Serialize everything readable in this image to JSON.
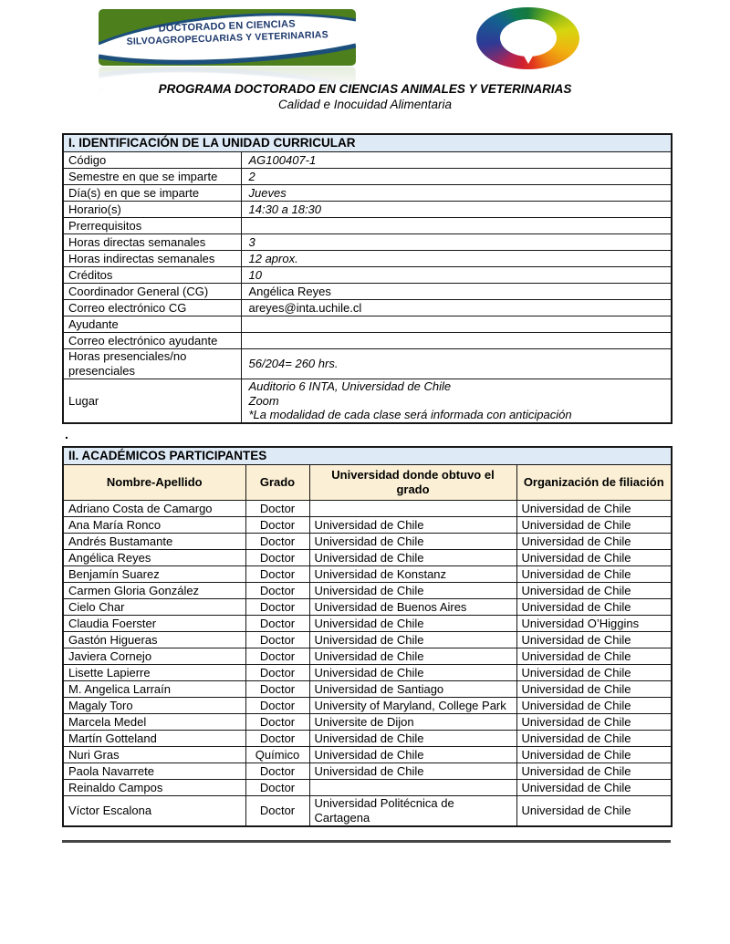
{
  "header": {
    "left_logo": {
      "line1": "DOCTORADO EN CIENCIAS",
      "line2": "SILVOAGROPECUARIAS Y VETERINARIAS"
    },
    "title": "PROGRAMA DOCTORADO EN CIENCIAS ANIMALES Y VETERINARIAS",
    "subtitle": "Calidad e Inocuidad Alimentaria"
  },
  "identification_table": {
    "section_title": "I. IDENTIFICACIÓN DE LA UNIDAD CURRICULAR",
    "rows": [
      {
        "label": "Código",
        "value": "AG100407-1",
        "italic": true
      },
      {
        "label": "Semestre en que se imparte",
        "value": "2",
        "italic": true
      },
      {
        "label": "Día(s) en que se imparte",
        "value": "Jueves",
        "italic": true
      },
      {
        "label": "Horario(s)",
        "value": "14:30 a 18:30",
        "italic": true
      },
      {
        "label": "Prerrequisitos",
        "value": "",
        "italic": false
      },
      {
        "label": "Horas directas semanales",
        "value": "3",
        "italic": true
      },
      {
        "label": "Horas indirectas semanales",
        "value": "12 aprox.",
        "italic": true
      },
      {
        "label": "Créditos",
        "value": "10",
        "italic": true
      },
      {
        "label": "Coordinador General (CG)",
        "value": "Angélica Reyes",
        "italic": false
      },
      {
        "label": "Correo electrónico CG",
        "value": "areyes@inta.uchile.cl",
        "italic": false
      },
      {
        "label": "Ayudante",
        "value": "",
        "italic": false
      },
      {
        "label": "Correo electrónico ayudante",
        "value": "",
        "italic": false
      },
      {
        "label": "Horas presenciales/no presenciales",
        "value": "56/204= 260 hrs.",
        "italic": true
      },
      {
        "label": "Lugar",
        "value": [
          "Auditorio 6 INTA, Universidad de Chile",
          "Zoom",
          "*La modalidad de cada clase será informada con anticipación"
        ],
        "italic": true
      }
    ]
  },
  "separator_dot": ".",
  "academics_table": {
    "section_title": "II. ACADÉMICOS PARTICIPANTES",
    "columns": [
      "Nombre-Apellido",
      "Grado",
      "Universidad donde obtuvo el grado",
      "Organización de filiación"
    ],
    "rows": [
      [
        "Adriano Costa de Camargo",
        "Doctor",
        "",
        "Universidad de Chile"
      ],
      [
        "Ana María Ronco",
        "Doctor",
        "Universidad de Chile",
        "Universidad de Chile"
      ],
      [
        "Andrés Bustamante",
        "Doctor",
        "Universidad de Chile",
        "Universidad de Chile"
      ],
      [
        "Angélica Reyes",
        "Doctor",
        "Universidad de Chile",
        "Universidad de Chile"
      ],
      [
        "Benjamín Suarez",
        "Doctor",
        "Universidad de Konstanz",
        "Universidad de Chile"
      ],
      [
        "Carmen Gloria González",
        "Doctor",
        "Universidad de Chile",
        "Universidad de Chile"
      ],
      [
        "Cielo Char",
        "Doctor",
        "Universidad de Buenos Aires",
        "Universidad de Chile"
      ],
      [
        "Claudia Foerster",
        "Doctor",
        "Universidad de Chile",
        "Universidad O’Higgins"
      ],
      [
        "Gastón Higueras",
        "Doctor",
        "Universidad de Chile",
        "Universidad de Chile"
      ],
      [
        "Javiera Cornejo",
        "Doctor",
        "Universidad de Chile",
        "Universidad de Chile"
      ],
      [
        "Lisette Lapierre",
        "Doctor",
        "Universidad de Chile",
        "Universidad de Chile"
      ],
      [
        "M. Angelica Larraín",
        "Doctor",
        "Universidad de Santiago",
        "Universidad de Chile"
      ],
      [
        "Magaly Toro",
        "Doctor",
        "University of Maryland, College Park",
        "Universidad de Chile"
      ],
      [
        "Marcela Medel",
        "Doctor",
        "Universite de Dijon",
        "Universidad de Chile"
      ],
      [
        "Martín Gotteland",
        "Doctor",
        "Universidad de Chile",
        "Universidad de Chile"
      ],
      [
        "Nuri Gras",
        "Químico",
        "Universidad de Chile",
        "Universidad de Chile"
      ],
      [
        "Paola Navarrete",
        "Doctor",
        "Universidad de Chile",
        "Universidad de Chile"
      ],
      [
        "Reinaldo Campos",
        "Doctor",
        "",
        "Universidad de Chile"
      ],
      [
        "Víctor Escalona",
        "Doctor",
        "Universidad Politécnica de Cartagena",
        "Universidad de Chile"
      ]
    ]
  },
  "colors": {
    "section_header_bg": "#DEEAF6",
    "column_header_bg": "#FBF0D5",
    "logo_green": "#4D7F1D",
    "logo_navy": "#1D4F7C",
    "table_border": "#161616"
  }
}
